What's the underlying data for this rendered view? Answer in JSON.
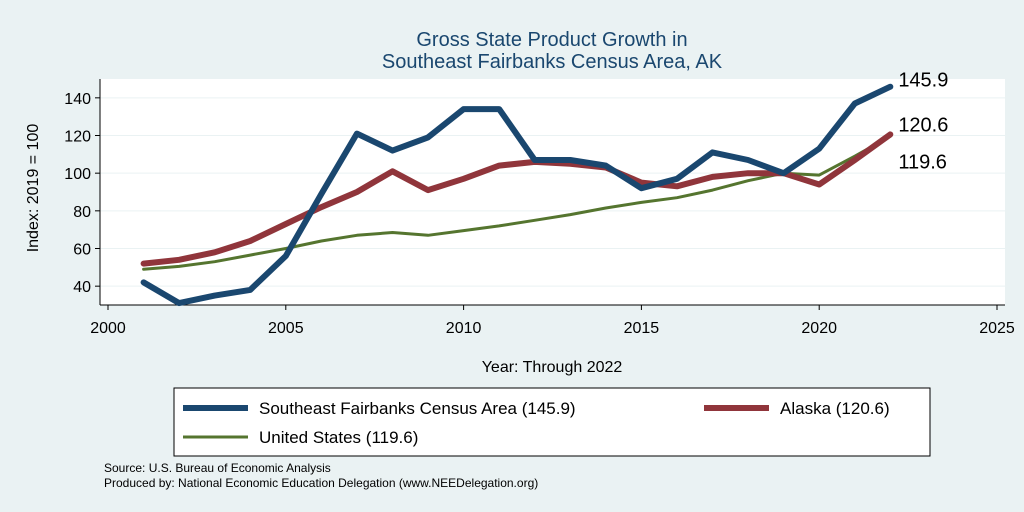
{
  "chart_data": {
    "type": "line",
    "title": [
      "Gross State Product Growth in",
      "Southeast Fairbanks Census Area, AK"
    ],
    "xlabel": "Year: Through 2022",
    "ylabel": "Index: 2019 = 100",
    "xlim": [
      2000,
      2025
    ],
    "ylim": [
      30,
      150
    ],
    "x_ticks": [
      2000,
      2005,
      2010,
      2015,
      2020,
      2025
    ],
    "y_ticks": [
      40,
      60,
      80,
      100,
      120,
      140
    ],
    "grid": "horizontal",
    "series": [
      {
        "name": "Southeast Fairbanks Census Area (145.9)",
        "color": "#1a476f",
        "x": [
          2001,
          2002,
          2003,
          2004,
          2005,
          2006,
          2007,
          2008,
          2009,
          2010,
          2011,
          2012,
          2013,
          2014,
          2015,
          2016,
          2017,
          2018,
          2019,
          2020,
          2021,
          2022
        ],
        "values": [
          42,
          31,
          35,
          38,
          56,
          89,
          121,
          112,
          119,
          134,
          134,
          107,
          107,
          104,
          92,
          97,
          111,
          107,
          100,
          113,
          137,
          145.9
        ],
        "end_label": "145.9"
      },
      {
        "name": "Alaska (120.6)",
        "color": "#90353b",
        "x": [
          2001,
          2002,
          2003,
          2004,
          2005,
          2006,
          2007,
          2008,
          2009,
          2010,
          2011,
          2012,
          2013,
          2014,
          2015,
          2016,
          2017,
          2018,
          2019,
          2020,
          2021,
          2022
        ],
        "values": [
          52,
          54,
          58,
          64,
          73,
          82,
          90,
          101,
          91,
          97,
          104,
          106,
          105,
          103,
          95,
          93,
          98,
          100,
          100,
          94,
          107,
          120.6
        ],
        "end_label": "120.6"
      },
      {
        "name": "United States (119.6)",
        "color": "#55752f",
        "x": [
          2001,
          2002,
          2003,
          2004,
          2005,
          2006,
          2007,
          2008,
          2009,
          2010,
          2011,
          2012,
          2013,
          2014,
          2015,
          2016,
          2017,
          2018,
          2019,
          2020,
          2021,
          2022
        ],
        "values": [
          49,
          50.5,
          53,
          56.5,
          60,
          64,
          67,
          68.5,
          67,
          69.5,
          72,
          75,
          78,
          81.5,
          84.5,
          87,
          91,
          96,
          100,
          99,
          109,
          119.6
        ],
        "end_label": "119.6"
      }
    ],
    "legend_position": "bottom"
  },
  "source_lines": [
    "Source: U.S. Bureau of Economic Analysis",
    "Produced by: National Economic Education Delegation (www.NEEDelegation.org)"
  ]
}
